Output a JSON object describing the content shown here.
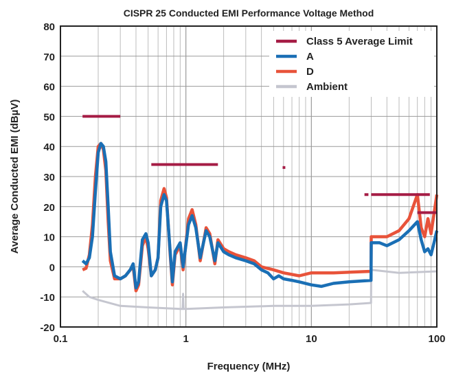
{
  "chart_data": {
    "type": "line",
    "title": "CISPR 25 Conducted EMI Performance Voltage Method",
    "xlabel": "Frequency (MHz)",
    "ylabel": "Average Conducted EMI (dBµV)",
    "xscale": "log",
    "xlim": [
      0.1,
      100
    ],
    "ylim": [
      -20,
      80
    ],
    "xticks": [
      0.1,
      1,
      10,
      100
    ],
    "xtick_labels": [
      "0.1",
      "1",
      "10",
      "100"
    ],
    "yticks": [
      -20,
      -10,
      0,
      10,
      20,
      30,
      40,
      50,
      60,
      70,
      80
    ],
    "grid": true,
    "legend": "top-right",
    "series": [
      {
        "name": "Class 5 Average Limit",
        "color": "#a51c45",
        "kind": "segments",
        "segments": [
          [
            0.15,
            0.3,
            50
          ],
          [
            0.53,
            1.8,
            34
          ],
          [
            5.9,
            6.2,
            33
          ],
          [
            26.5,
            28.5,
            24
          ],
          [
            30,
            88,
            24
          ],
          [
            70,
            108,
            18
          ]
        ]
      },
      {
        "name": "A",
        "color": "#1a6fb5",
        "x": [
          0.15,
          0.16,
          0.17,
          0.18,
          0.19,
          0.2,
          0.21,
          0.22,
          0.23,
          0.24,
          0.25,
          0.27,
          0.3,
          0.33,
          0.36,
          0.38,
          0.4,
          0.42,
          0.45,
          0.48,
          0.5,
          0.53,
          0.57,
          0.6,
          0.63,
          0.67,
          0.7,
          0.75,
          0.78,
          0.82,
          0.9,
          0.95,
          1.05,
          1.12,
          1.2,
          1.3,
          1.45,
          1.55,
          1.7,
          1.8,
          2,
          2.2,
          2.5,
          3,
          3.5,
          4,
          4.5,
          5,
          5.5,
          6,
          7,
          8,
          10,
          12,
          15,
          20,
          29.9,
          30,
          35,
          40,
          50,
          60,
          70,
          75,
          80,
          85,
          90,
          95,
          100
        ],
        "y": [
          2,
          1,
          3,
          10,
          25,
          38,
          41,
          40,
          35,
          20,
          5,
          -3,
          -4,
          -3,
          -1,
          1,
          -7,
          -5,
          9,
          11,
          8,
          -3,
          -1,
          3,
          20,
          24,
          22,
          5,
          -5,
          5,
          8,
          0,
          14,
          17,
          13,
          3,
          12,
          10,
          2,
          8,
          5,
          4,
          3,
          2,
          1,
          -1,
          -2,
          -4,
          -3,
          -4,
          -4.5,
          -5,
          -6,
          -6.5,
          -5.5,
          -5,
          -4.5,
          8,
          8,
          7,
          9,
          12,
          15,
          9,
          5,
          6,
          4,
          8,
          12
        ]
      },
      {
        "name": "D",
        "color": "#e8533a",
        "x": [
          0.15,
          0.16,
          0.17,
          0.18,
          0.19,
          0.2,
          0.21,
          0.22,
          0.23,
          0.24,
          0.25,
          0.27,
          0.3,
          0.33,
          0.36,
          0.38,
          0.4,
          0.42,
          0.45,
          0.48,
          0.5,
          0.53,
          0.57,
          0.6,
          0.63,
          0.67,
          0.7,
          0.75,
          0.78,
          0.82,
          0.9,
          0.95,
          1.05,
          1.12,
          1.2,
          1.3,
          1.45,
          1.55,
          1.7,
          1.8,
          2,
          2.2,
          2.5,
          3,
          3.5,
          4,
          5,
          6,
          8,
          10,
          15,
          29.9,
          30,
          40,
          50,
          60,
          70,
          75,
          80,
          85,
          90,
          100
        ],
        "y": [
          -1,
          -0.5,
          4,
          14,
          30,
          40,
          41,
          39,
          32,
          15,
          2,
          -4,
          -4,
          -3,
          -1,
          0,
          -8,
          -6,
          7,
          10,
          6,
          -3,
          -1,
          3,
          22,
          26,
          23,
          4,
          -6,
          4,
          7,
          -1,
          16,
          19,
          14,
          2,
          13,
          11,
          1,
          9,
          6,
          5,
          4,
          3,
          2,
          0,
          -1,
          -2,
          -3,
          -2,
          -2,
          -1.5,
          10,
          10,
          12,
          16,
          24,
          13,
          10,
          16,
          11,
          24
        ]
      },
      {
        "name": "Ambient",
        "color": "#c5c6cf",
        "x": [
          0.15,
          0.17,
          0.2,
          0.3,
          0.5,
          0.9,
          0.94,
          0.95,
          0.96,
          1,
          2,
          5,
          10,
          20,
          29.9,
          30,
          50,
          100
        ],
        "y": [
          -8,
          -10,
          -11,
          -13,
          -13.5,
          -14,
          -14,
          -9,
          -14,
          -14,
          -13.5,
          -13,
          -13,
          -12.5,
          -12,
          -1,
          -2,
          -1.5
        ]
      }
    ]
  }
}
